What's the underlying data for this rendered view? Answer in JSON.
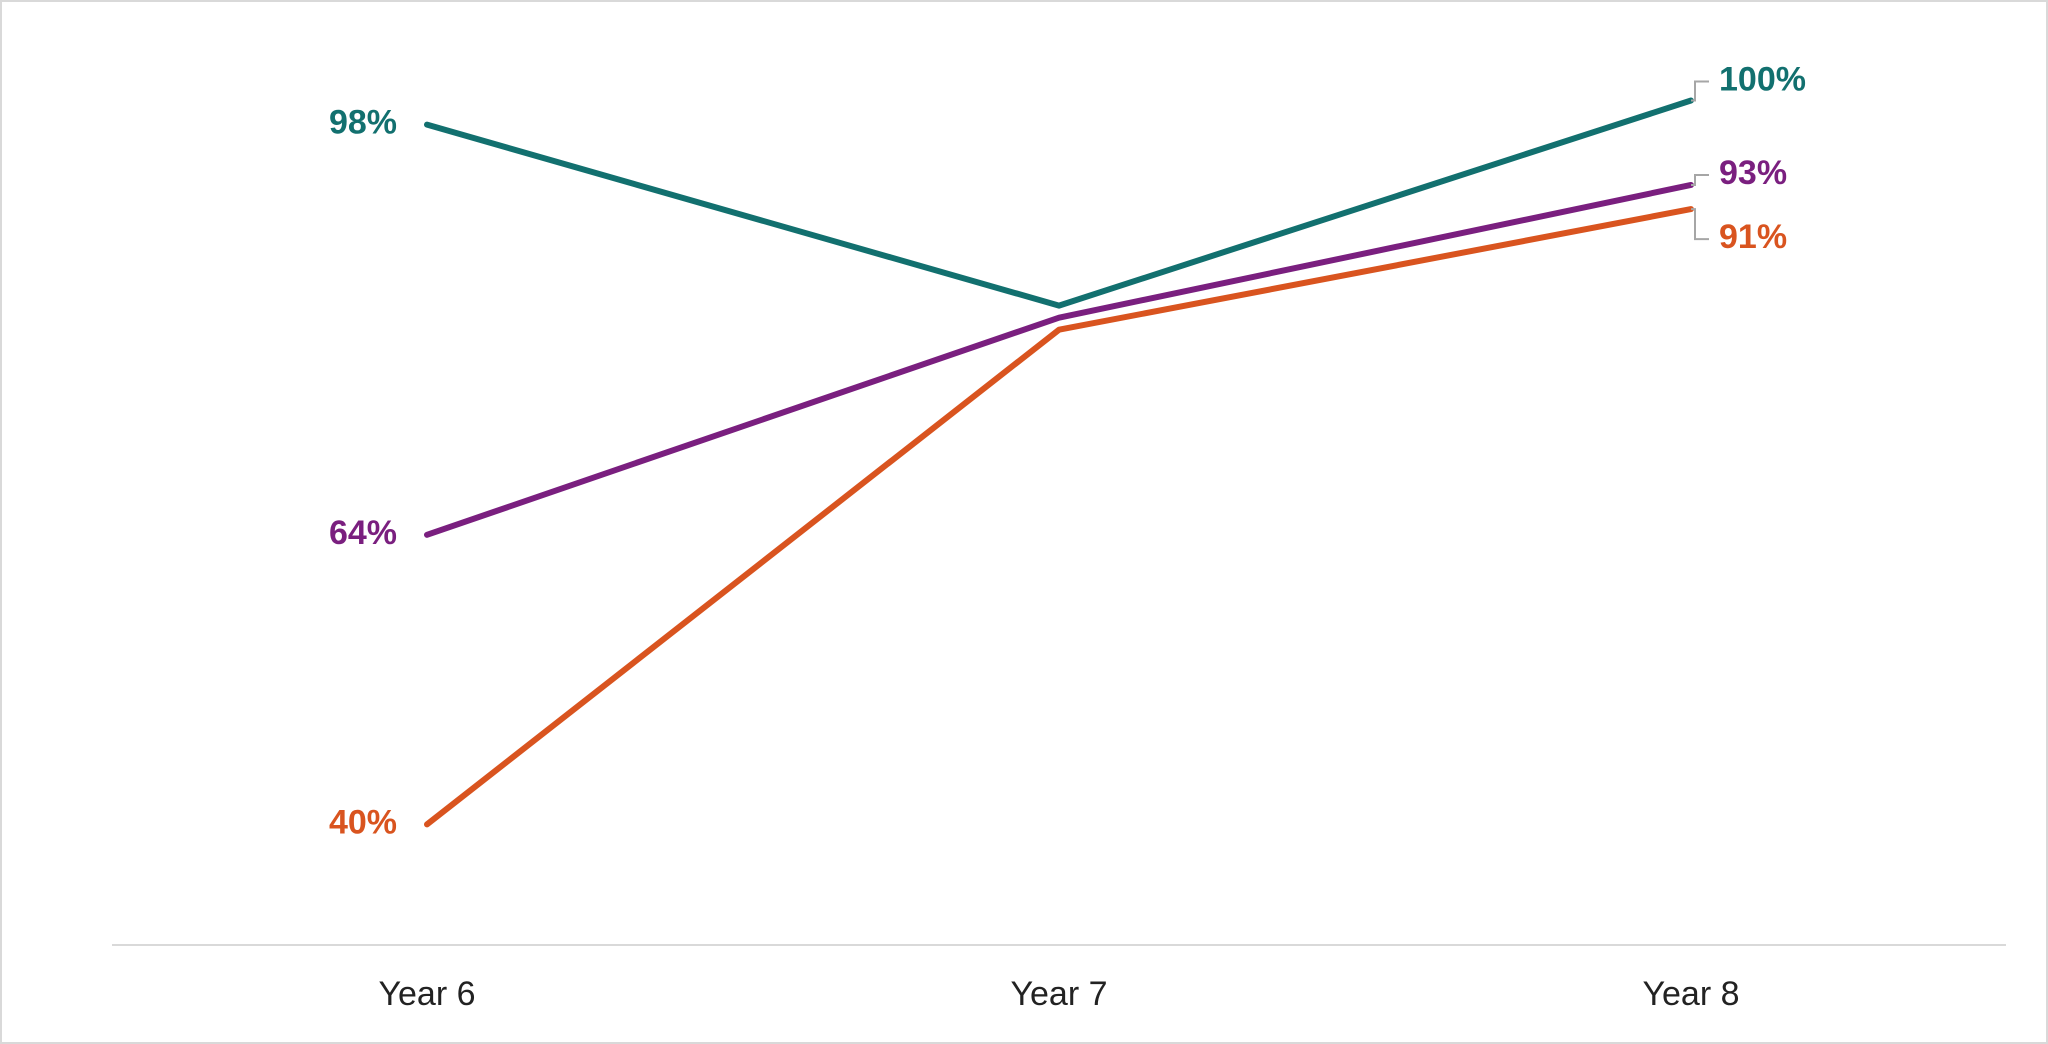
{
  "chart_data": {
    "type": "line",
    "categories": [
      "Year 6",
      "Year 7",
      "Year 8"
    ],
    "series": [
      {
        "color": "#12706f",
        "values": [
          98,
          83,
          100
        ],
        "value_labels": [
          "98%",
          null,
          "100%"
        ]
      },
      {
        "color": "#7a1f7f",
        "values": [
          64,
          82,
          93
        ],
        "value_labels": [
          "64%",
          null,
          "93%"
        ]
      },
      {
        "color": "#d9541f",
        "values": [
          40,
          81,
          91
        ],
        "value_labels": [
          "40%",
          null,
          "91%"
        ]
      }
    ],
    "ylim": [
      30,
      108
    ]
  }
}
